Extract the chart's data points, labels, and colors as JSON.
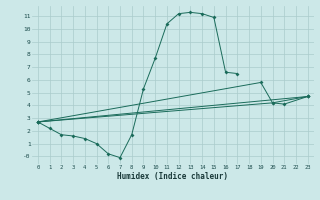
{
  "xlabel": "Humidex (Indice chaleur)",
  "bg_color": "#cce8e8",
  "grid_color": "#aacccc",
  "line_color": "#1a6b5a",
  "line1_x": [
    0,
    1,
    2,
    3,
    4,
    5,
    6,
    7,
    8,
    9,
    10,
    11,
    12,
    13,
    14,
    15,
    16,
    17
  ],
  "line1_y": [
    2.7,
    2.2,
    1.7,
    1.6,
    1.4,
    1.0,
    0.2,
    -0.1,
    1.7,
    5.3,
    7.7,
    10.4,
    11.2,
    11.3,
    11.2,
    10.9,
    6.6,
    6.5
  ],
  "line2_x": [
    0,
    23
  ],
  "line2_y": [
    2.7,
    4.7
  ],
  "line3_x": [
    0,
    19,
    20,
    23
  ],
  "line3_y": [
    2.7,
    5.8,
    4.2,
    4.7
  ],
  "line4_x": [
    0,
    20,
    21,
    23
  ],
  "line4_y": [
    2.7,
    4.2,
    4.1,
    4.7
  ],
  "ylim": [
    -0.6,
    11.8
  ],
  "xlim": [
    -0.5,
    23.5
  ],
  "yticks": [
    0,
    1,
    2,
    3,
    4,
    5,
    6,
    7,
    8,
    9,
    10,
    11
  ],
  "ytick_labels": [
    "-0",
    "1",
    "2",
    "3",
    "4",
    "5",
    "6",
    "7",
    "8",
    "9",
    "10",
    "11"
  ],
  "xticks": [
    0,
    1,
    2,
    3,
    4,
    5,
    6,
    7,
    8,
    9,
    10,
    11,
    12,
    13,
    14,
    15,
    16,
    17,
    18,
    19,
    20,
    21,
    22,
    23
  ]
}
